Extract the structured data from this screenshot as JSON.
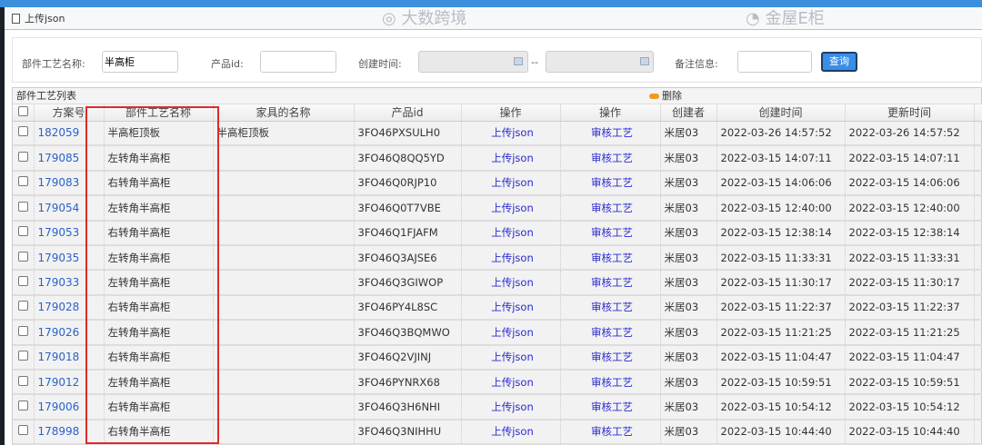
{
  "window": {
    "title": "上传json"
  },
  "form": {
    "part_name_label": "部件工艺名称:",
    "part_name_value": "半高柜",
    "product_id_label": "产品id:",
    "product_id_value": "",
    "created_label": "创建时间:",
    "range_sep": "--",
    "remark_label": "备注信息:",
    "remark_value": "",
    "query_button": "查询"
  },
  "grid": {
    "title": "部件工艺列表",
    "delete_label": "删除",
    "columns": [
      "方案号",
      "部件工艺名称",
      "家具的名称",
      "产品id",
      "操作",
      "操作",
      "创建者",
      "创建时间",
      "更新时间"
    ],
    "rows": [
      [
        "182059",
        "半高柜顶板",
        "半高柜顶板",
        "3FO46PXSULH0",
        "上传json",
        "审核工艺",
        "米居03",
        "2022-03-26 14:57:52",
        "2022-03-26 14:57:52"
      ],
      [
        "179085",
        "左转角半高柜",
        "",
        "3FO46Q8QQ5YD",
        "上传json",
        "审核工艺",
        "米居03",
        "2022-03-15 14:07:11",
        "2022-03-15 14:07:11"
      ],
      [
        "179083",
        "右转角半高柜",
        "",
        "3FO46Q0RJP10",
        "上传json",
        "审核工艺",
        "米居03",
        "2022-03-15 14:06:06",
        "2022-03-15 14:06:06"
      ],
      [
        "179054",
        "左转角半高柜",
        "",
        "3FO46Q0T7VBE",
        "上传json",
        "审核工艺",
        "米居03",
        "2022-03-15 12:40:00",
        "2022-03-15 12:40:00"
      ],
      [
        "179053",
        "右转角半高柜",
        "",
        "3FO46Q1FJAFM",
        "上传json",
        "审核工艺",
        "米居03",
        "2022-03-15 12:38:14",
        "2022-03-15 12:38:14"
      ],
      [
        "179035",
        "左转角半高柜",
        "",
        "3FO46Q3AJSE6",
        "上传json",
        "审核工艺",
        "米居03",
        "2022-03-15 11:33:31",
        "2022-03-15 11:33:31"
      ],
      [
        "179033",
        "左转角半高柜",
        "",
        "3FO46Q3GIWOP",
        "上传json",
        "审核工艺",
        "米居03",
        "2022-03-15 11:30:17",
        "2022-03-15 11:30:17"
      ],
      [
        "179028",
        "右转角半高柜",
        "",
        "3FO46PY4L8SC",
        "上传json",
        "审核工艺",
        "米居03",
        "2022-03-15 11:22:37",
        "2022-03-15 11:22:37"
      ],
      [
        "179026",
        "左转角半高柜",
        "",
        "3FO46Q3BQMWO",
        "上传json",
        "审核工艺",
        "米居03",
        "2022-03-15 11:21:25",
        "2022-03-15 11:21:25"
      ],
      [
        "179018",
        "右转角半高柜",
        "",
        "3FO46Q2VJINJ",
        "上传json",
        "审核工艺",
        "米居03",
        "2022-03-15 11:04:47",
        "2022-03-15 11:04:47"
      ],
      [
        "179012",
        "左转角半高柜",
        "",
        "3FO46PYNRX68",
        "上传json",
        "审核工艺",
        "米居03",
        "2022-03-15 10:59:51",
        "2022-03-15 10:59:51"
      ],
      [
        "179006",
        "右转角半高柜",
        "",
        "3FO46Q3H6NHI",
        "上传json",
        "审核工艺",
        "米居03",
        "2022-03-15 10:54:12",
        "2022-03-15 10:54:12"
      ],
      [
        "178998",
        "右转角半高柜",
        "",
        "3FO46Q3NIHHU",
        "上传json",
        "审核工艺",
        "米居03",
        "2022-03-15 10:44:40",
        "2022-03-15 10:44:40"
      ]
    ]
  },
  "watermarks": [
    "大数跨境",
    "金屋E柜"
  ],
  "colors": {
    "accent": "#3a8ee6",
    "highlight_box": "#e02a2a",
    "link": "#2a62c9"
  }
}
